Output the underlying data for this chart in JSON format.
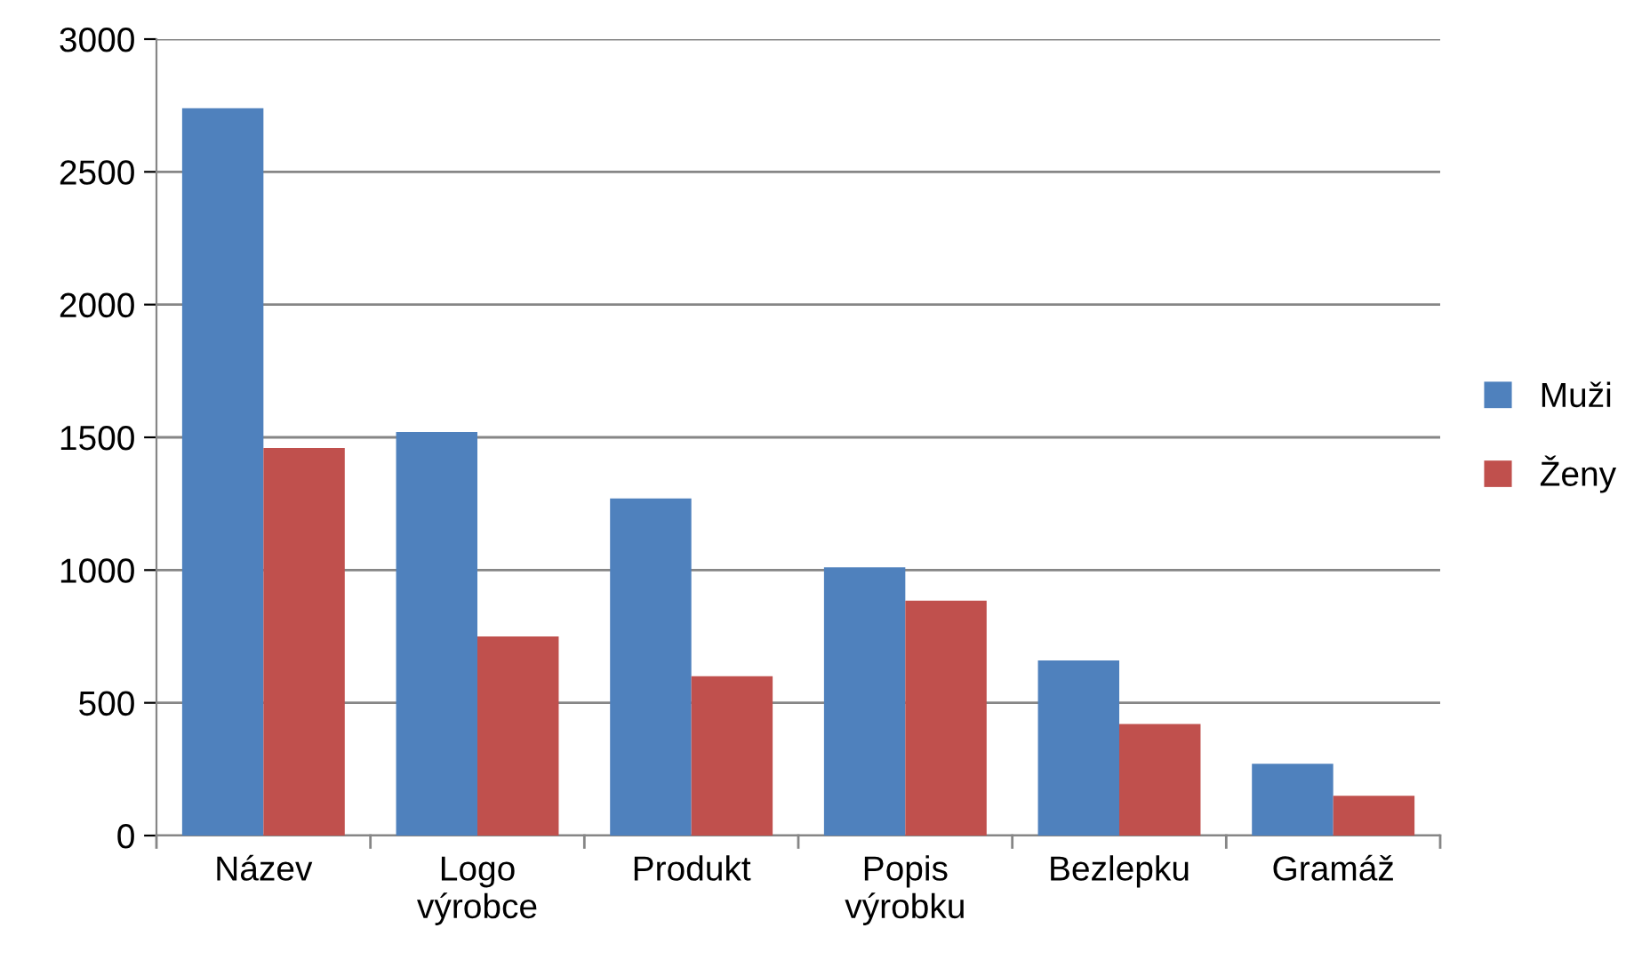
{
  "chart_data": {
    "type": "bar",
    "categories": [
      "Název",
      "Logo\nvýrobce",
      "Produkt",
      "Popis\nvýrobku",
      "Bezlepku",
      "Gramáž"
    ],
    "series": [
      {
        "name": "Muži",
        "color": "#4f81bd",
        "values": [
          2740,
          1520,
          1270,
          1010,
          660,
          270
        ]
      },
      {
        "name": "Ženy",
        "color": "#c0504d",
        "values": [
          1460,
          750,
          600,
          885,
          420,
          150
        ]
      }
    ],
    "ylim": [
      0,
      3000
    ],
    "yticks": [
      0,
      500,
      1000,
      1500,
      2000,
      2500,
      3000
    ],
    "grid": "y",
    "legend": "right"
  }
}
